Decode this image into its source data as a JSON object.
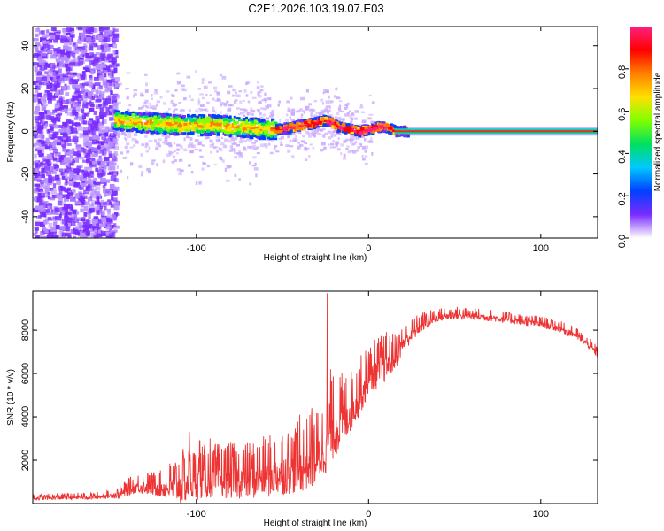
{
  "title": "C2E1.2026.103.19.07.E03",
  "charts": [
    {
      "type": "heatmap",
      "xlabel": "Height of straight line (km)",
      "ylabel": "Frequency (Hz)",
      "xlim": [
        -195,
        133
      ],
      "ylim": [
        -50,
        49
      ],
      "xticks": [
        -100,
        0,
        100
      ],
      "xtick_labels": [
        "-100",
        "0",
        "100"
      ],
      "yticks": [
        -40,
        -20,
        0,
        20,
        40
      ],
      "ytick_labels": [
        "-40",
        "-20",
        "0",
        "20",
        "40"
      ],
      "colorbar": {
        "label": "Normalized spectral amplitude",
        "range": [
          0,
          1
        ],
        "ticks": [
          0,
          0.2,
          0.4,
          0.6,
          0.8
        ],
        "tick_labels": [
          "0.0",
          "0.2",
          "0.4",
          "0.6",
          "0.8"
        ],
        "colors": [
          "#ffffff",
          "#7a2cff",
          "#0040ff",
          "#00c8ff",
          "#00e060",
          "#80ff00",
          "#ffe000",
          "#ff8000",
          "#ff0000",
          "#ff2080"
        ]
      },
      "ridge": {
        "x": [
          -148,
          -130,
          -110,
          -90,
          -75,
          -60,
          -52,
          -45,
          -38,
          -32,
          -27,
          -22,
          -18,
          -12,
          -6,
          0,
          5,
          10,
          15,
          20,
          40,
          80,
          133
        ],
        "y": [
          5,
          4,
          3,
          3,
          2,
          1,
          1,
          2,
          3,
          4,
          5,
          4,
          2,
          1,
          0,
          1,
          2,
          2,
          0,
          0,
          0,
          0,
          0
        ]
      }
    },
    {
      "type": "line",
      "xlabel": "Height of straight line (km)",
      "ylabel": "SNR (10 * v/v)",
      "xlim": [
        -195,
        133
      ],
      "ylim": [
        0,
        9800
      ],
      "xticks": [
        -100,
        0,
        100
      ],
      "xtick_labels": [
        "-100",
        "0",
        "100"
      ],
      "yticks": [
        2000,
        4000,
        6000,
        8000
      ],
      "ytick_labels": [
        "2000",
        "4000",
        "6000",
        "8000"
      ],
      "color": "#ee3333",
      "envelope": {
        "x": [
          -195,
          -160,
          -145,
          -135,
          -120,
          -110,
          -100,
          -90,
          -80,
          -70,
          -60,
          -50,
          -40,
          -30,
          -25,
          -20,
          -15,
          -10,
          -5,
          0,
          5,
          10,
          15,
          20,
          30,
          40,
          50,
          60,
          70,
          80,
          90,
          100,
          110,
          120,
          128,
          133
        ],
        "y": [
          250,
          300,
          400,
          800,
          700,
          800,
          1000,
          1100,
          1100,
          1100,
          1200,
          1400,
          1600,
          2000,
          2600,
          3400,
          3800,
          4300,
          5000,
          5700,
          6100,
          6400,
          6700,
          7400,
          8200,
          8600,
          8700,
          8650,
          8600,
          8500,
          8400,
          8300,
          8100,
          7800,
          7300,
          6900
        ]
      },
      "noise": {
        "x": [
          -195,
          -150,
          -140,
          -120,
          -110,
          -90,
          -70,
          -50,
          -30,
          -20,
          -10,
          0,
          10,
          20,
          40,
          80,
          133
        ],
        "amp": [
          150,
          200,
          450,
          700,
          1400,
          1400,
          1500,
          1700,
          2000,
          2200,
          1600,
          1400,
          1300,
          700,
          350,
          300,
          300
        ]
      },
      "spikes": [
        {
          "x": -104,
          "y": 3300
        },
        {
          "x": -98,
          "y": 2900
        },
        {
          "x": -92,
          "y": 3000
        },
        {
          "x": -50,
          "y": 3100
        },
        {
          "x": -40,
          "y": 4100
        },
        {
          "x": -33,
          "y": 4400
        },
        {
          "x": -24,
          "y": 9700
        },
        {
          "x": -22,
          "y": 6200
        },
        {
          "x": -5,
          "y": 6200
        },
        {
          "x": 0,
          "y": 7000
        },
        {
          "x": 7,
          "y": 6700
        }
      ]
    }
  ]
}
